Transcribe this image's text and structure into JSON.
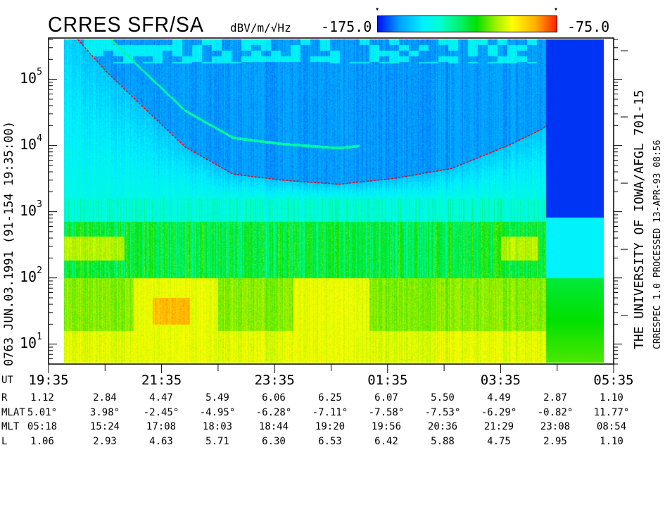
{
  "header": {
    "title": "CRRES SFR/SA",
    "units": "dBV/m/√Hz",
    "colorbar_min_label": "-175.0",
    "colorbar_max_label": "-75.0",
    "colorbar_marker": "▾"
  },
  "left_caption": "0763   JUN.03.1991   (91-154  19:35:00)",
  "right_caption": {
    "line1": "THE UNIVERSITY OF IOWA/AFGL 701-15",
    "line2": "CRRESPEC 1.0   PROCESSED 13-APR-93   08:56"
  },
  "chart_data": {
    "type": "heatmap",
    "title": "CRRES SFR/SA",
    "colorbar": {
      "label": "dBV/m/√Hz",
      "range": [
        -175.0,
        -75.0
      ],
      "colors": [
        "#0010f0",
        "#00f0ff",
        "#00e000",
        "#ffff00",
        "#ff2000"
      ]
    },
    "y_axis": {
      "scale": "log",
      "unit": "Hz",
      "range": [
        5,
        420000
      ],
      "tick_labels": [
        {
          "base": "10",
          "exp": "1",
          "value": 10
        },
        {
          "base": "10",
          "exp": "2",
          "value": 100
        },
        {
          "base": "10",
          "exp": "3",
          "value": 1000
        },
        {
          "base": "10",
          "exp": "4",
          "value": 10000
        },
        {
          "base": "10",
          "exp": "5",
          "value": 100000
        }
      ]
    },
    "x_axis": {
      "label": "UT",
      "range": [
        "19:35",
        "05:35"
      ],
      "tick_labels": [
        "19:35",
        "21:35",
        "23:35",
        "01:35",
        "03:35",
        "05:35"
      ]
    },
    "overlay_curve": {
      "color": "#ff0000",
      "style": "dashed",
      "points": [
        [
          "20:06",
          400000
        ],
        [
          "20:35",
          137000
        ],
        [
          "21:13",
          41000
        ],
        [
          "22:00",
          9500
        ],
        [
          "22:51",
          3700
        ],
        [
          "23:43",
          3000
        ],
        [
          "00:43",
          2600
        ],
        [
          "01:43",
          3200
        ],
        [
          "02:43",
          4500
        ],
        [
          "03:43",
          10000
        ],
        [
          "04:20",
          18000
        ],
        [
          "04:23",
          20000
        ]
      ]
    },
    "features": {
      "data_gap_block": {
        "start": "04:23",
        "end": "05:26"
      }
    }
  },
  "ephemeris": {
    "ut_label": "UT",
    "rows": [
      {
        "label": "R",
        "values": [
          "1.12",
          "2.84",
          "4.47",
          "5.49",
          "6.06",
          "6.25",
          "6.07",
          "5.50",
          "4.49",
          "2.87",
          "1.10"
        ]
      },
      {
        "label": "MLAT",
        "values": [
          "5.01°",
          "3.98°",
          "-2.45°",
          "-4.95°",
          "-6.28°",
          "-7.11°",
          "-7.58°",
          "-7.53°",
          "-6.29°",
          "-0.82°",
          "11.77°"
        ]
      },
      {
        "label": "MLT",
        "values": [
          "05:18",
          "15:24",
          "17:08",
          "18:03",
          "18:44",
          "19:20",
          "19:56",
          "20:36",
          "21:29",
          "23:08",
          "08:54"
        ]
      },
      {
        "label": "L",
        "values": [
          "1.06",
          "2.93",
          "4.63",
          "5.71",
          "6.30",
          "6.53",
          "6.42",
          "5.88",
          "4.75",
          "2.95",
          "1.10"
        ]
      }
    ]
  }
}
